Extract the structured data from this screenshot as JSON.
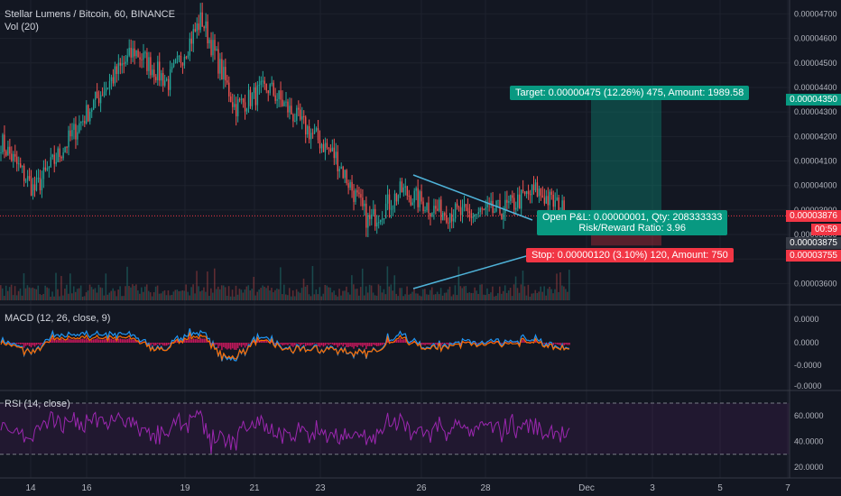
{
  "legend": {
    "main_title": "Stellar Lumens / Bitcoin, 60, BINANCE",
    "volume": "Vol (20)",
    "macd": "MACD (12, 26, close, 9)",
    "rsi": "RSI (14, close)"
  },
  "price_axis_labels": [
    "0.00004700",
    "0.00004600",
    "0.00004500",
    "0.00004400",
    "0.00004300",
    "0.00004200",
    "0.00004100",
    "0.00004000",
    "0.00003900",
    "0.00003800",
    "0.00003700",
    "0.00003600"
  ],
  "price_tags": {
    "target": "0.00004350",
    "last": "0.00003876",
    "countdown": "00:59",
    "entry": "0.00003875",
    "stop": "0.00003755"
  },
  "macd_axis_labels": [
    "0.0000",
    "0.0000",
    "-0.0000",
    "-0.0000"
  ],
  "rsi_axis_labels": [
    "60.0000",
    "40.0000",
    "20.0000"
  ],
  "date_labels": [
    "14",
    "16",
    "19",
    "21",
    "23",
    "26",
    "28",
    "Dec",
    "3",
    "5",
    "7"
  ],
  "position": {
    "target_text": "Target: 0.00000475 (12.26%) 475, Amount: 1989.58",
    "pnl_line1": "Open P&L: 0.00000001, Qty: 208333333",
    "pnl_line2": "Risk/Reward Ratio: 3.96",
    "stop_text": "Stop: 0.00000120 (3.10%) 120, Amount: 750"
  },
  "colors": {
    "background": "#131722",
    "up": "#26a69a",
    "down": "#ef5350",
    "macd_line": "#2196f3",
    "signal_line": "#ff6d00",
    "macd_hist": "#c2185b",
    "rsi_line": "#9c27b0",
    "target_green": "#089981",
    "stop_red": "#f23645",
    "triangle": "#4fb3d9"
  },
  "chart_data": {
    "type": "candlestick",
    "title": "Stellar Lumens / Bitcoin, 60, BINANCE",
    "x_ticks": [
      "14",
      "16",
      "19",
      "21",
      "23",
      "26",
      "28",
      "Dec",
      "3",
      "5",
      "7"
    ],
    "price_range": [
      3.55e-05,
      4.72e-05
    ],
    "key_points_price": [
      {
        "date": "14",
        "price": 4.18e-05
      },
      {
        "date": "15",
        "price": 3.98e-05
      },
      {
        "date": "16",
        "price": 4.18e-05
      },
      {
        "date": "17",
        "price": 4.38e-05
      },
      {
        "date": "18",
        "price": 4.55e-05
      },
      {
        "date": "19",
        "price": 4.42e-05
      },
      {
        "date": "20",
        "price": 4.68e-05
      },
      {
        "date": "21",
        "price": 4.32e-05
      },
      {
        "date": "22",
        "price": 4.4e-05
      },
      {
        "date": "23",
        "price": 4.25e-05
      },
      {
        "date": "24",
        "price": 4.12e-05
      },
      {
        "date": "25",
        "price": 3.85e-05
      },
      {
        "date": "26",
        "price": 3.98e-05
      },
      {
        "date": "27",
        "price": 3.9e-05
      },
      {
        "date": "28",
        "price": 3.88e-05
      },
      {
        "date": "29",
        "price": 3.9e-05
      },
      {
        "date": "30",
        "price": 3.98e-05
      },
      {
        "date": "30",
        "price": 3.88e-05
      }
    ],
    "position": {
      "entry": 3.875e-05,
      "target": 4.35e-05,
      "stop": 3.755e-05
    },
    "indicators": [
      "Vol (20)",
      "MACD (12, 26, close, 9)",
      "RSI (14, close)"
    ],
    "rsi_levels": [
      70,
      30
    ]
  }
}
